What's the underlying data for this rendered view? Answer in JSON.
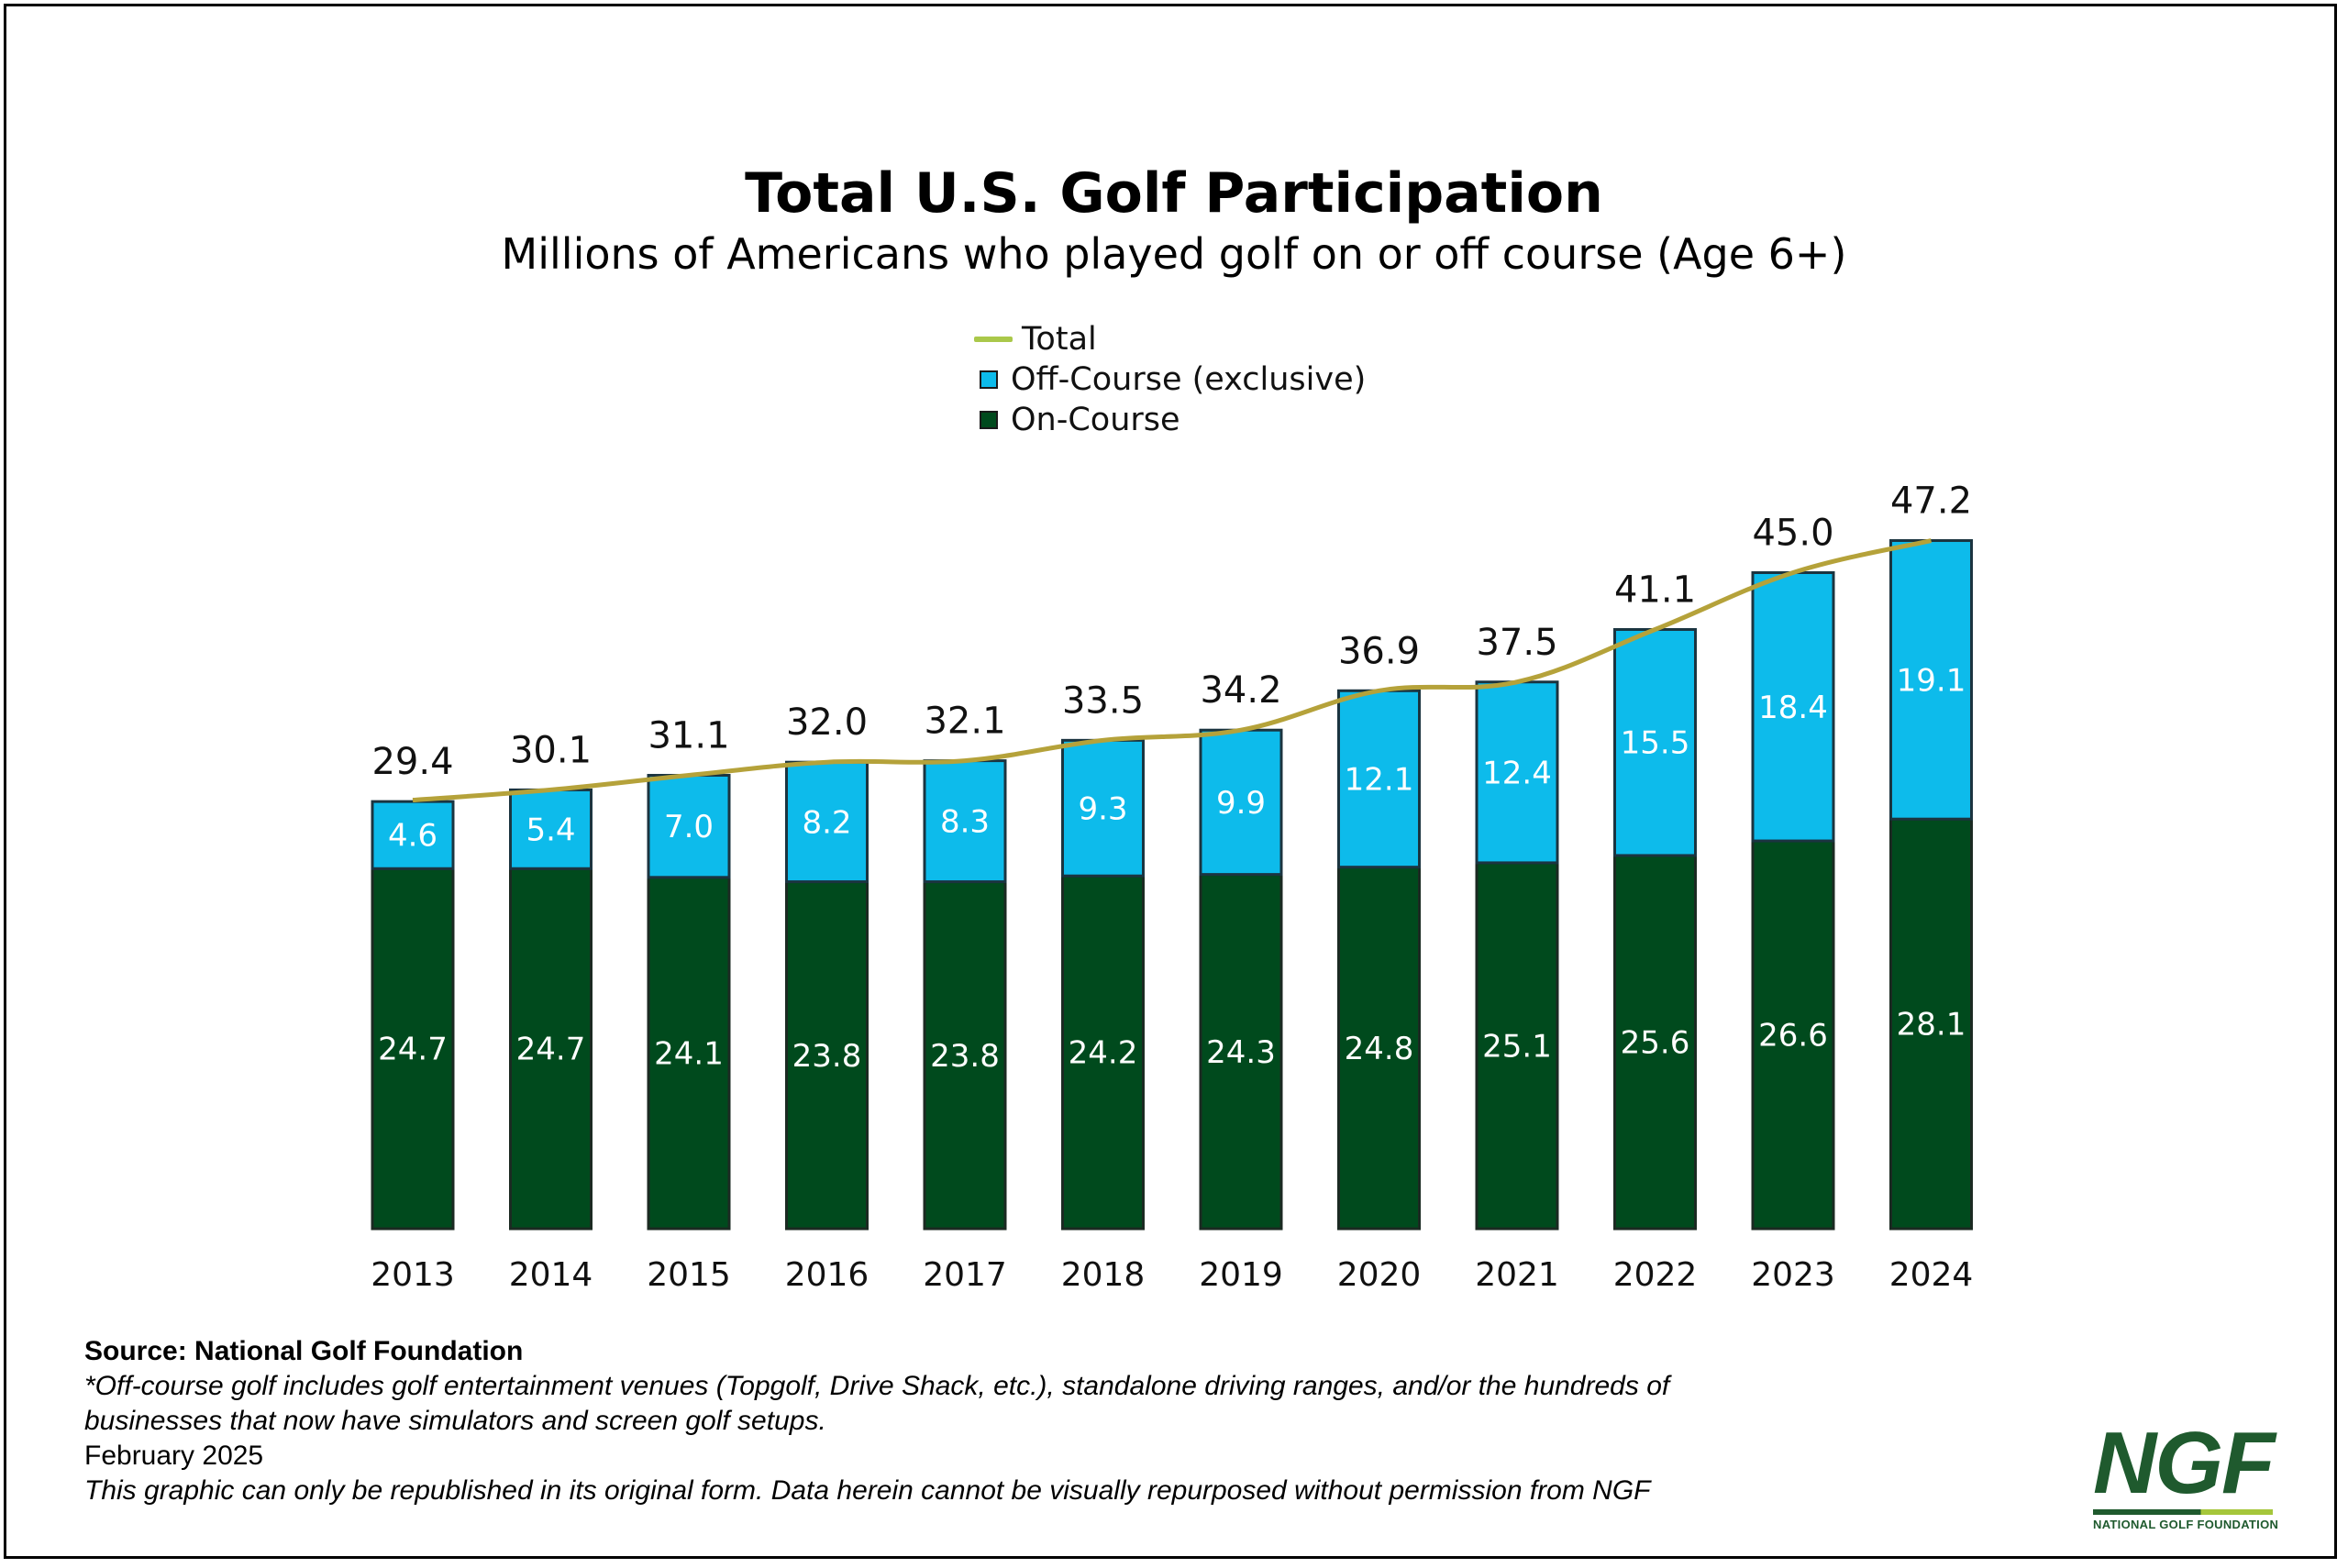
{
  "chart_data": {
    "type": "bar",
    "stacked": true,
    "title": "Total U.S. Golf Participation",
    "subtitle": "Millions of Americans who played golf on or off course (Age 6+)",
    "categories": [
      "2013",
      "2014",
      "2015",
      "2016",
      "2017",
      "2018",
      "2019",
      "2020",
      "2021",
      "2022",
      "2023",
      "2024"
    ],
    "series": [
      {
        "name": "On-Course",
        "color": "#004a1d",
        "values": [
          24.7,
          24.7,
          24.1,
          23.8,
          23.8,
          24.2,
          24.3,
          24.8,
          25.1,
          25.6,
          26.6,
          28.1
        ]
      },
      {
        "name": "Off-Course (exclusive)",
        "color": "#0dbbeb",
        "values": [
          4.6,
          5.4,
          7.0,
          8.2,
          8.3,
          9.3,
          9.9,
          12.1,
          12.4,
          15.5,
          18.4,
          19.1
        ]
      }
    ],
    "total": {
      "name": "Total",
      "color": "#b5a23a",
      "values": [
        29.4,
        30.1,
        31.1,
        32.0,
        32.1,
        33.5,
        34.2,
        36.9,
        37.5,
        41.1,
        45.0,
        47.2
      ]
    },
    "legend": [
      "Total",
      "Off-Course (exclusive)",
      "On-Course"
    ],
    "legend_colors": [
      "#aac84a",
      "#0dbbeb",
      "#004a1d"
    ],
    "ylim": [
      0,
      50
    ],
    "grid": false,
    "legend_position": "top-center"
  },
  "footer": {
    "source": "Source: National Golf Foundation",
    "note_line1": "*Off-course golf includes golf entertainment venues (Topgolf, Drive Shack, etc.), standalone driving ranges, and/or the hundreds of",
    "note_line2": "businesses that now have simulators and screen golf setups.",
    "date": "February 2025",
    "disclaimer": "This graphic can only be republished in its original form. Data herein cannot be visually repurposed without permission from NGF"
  },
  "logo": {
    "text": "NGF",
    "subtext": "NATIONAL GOLF FOUNDATION"
  }
}
